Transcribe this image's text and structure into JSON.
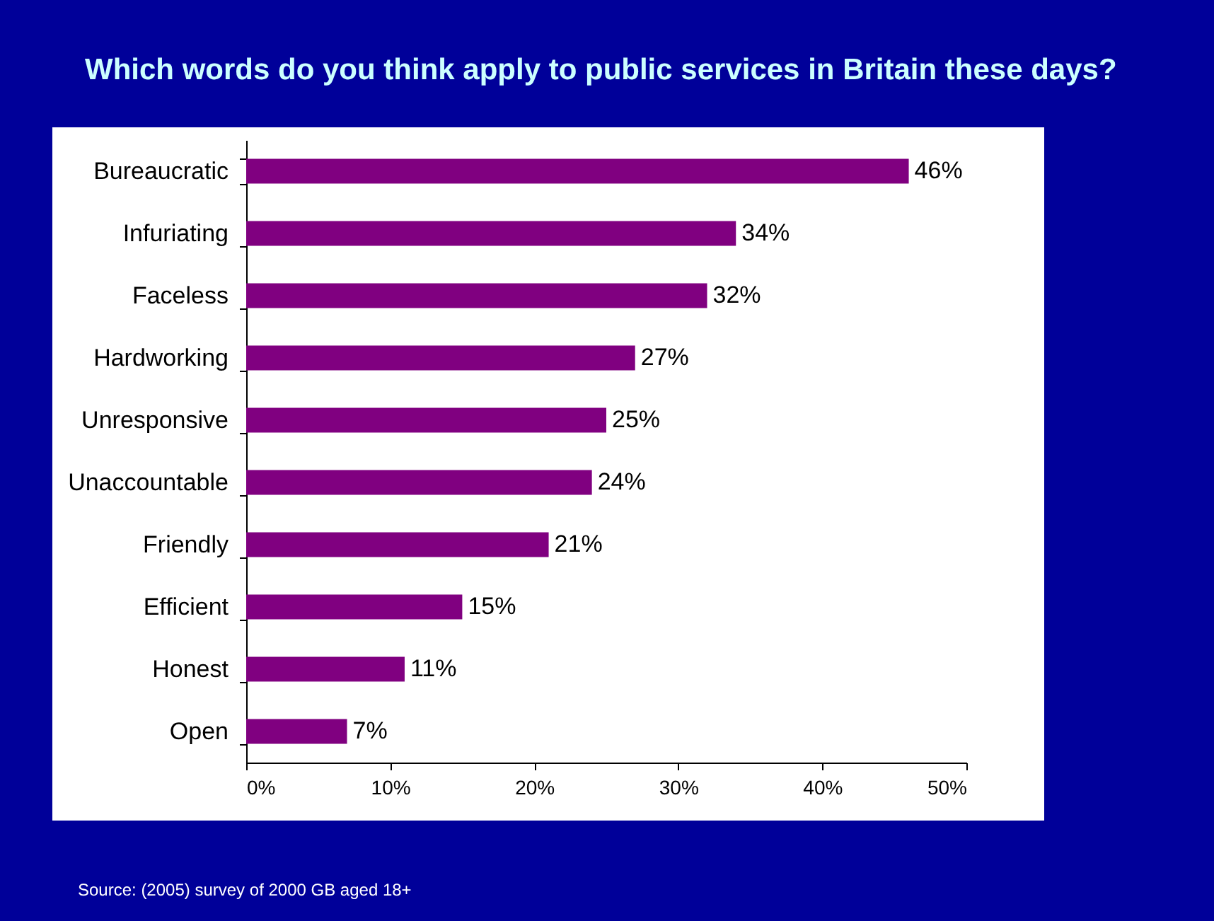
{
  "chart_data": {
    "type": "bar",
    "orientation": "horizontal",
    "title": "Which words do you think apply to public services in Britain these days?",
    "categories": [
      "Bureaucratic",
      "Infuriating",
      "Faceless",
      "Hardworking",
      "Unresponsive",
      "Unaccountable",
      "Friendly",
      "Efficient",
      "Honest",
      "Open"
    ],
    "values": [
      46,
      34,
      32,
      27,
      25,
      24,
      21,
      15,
      11,
      7
    ],
    "value_labels": [
      "46%",
      "34%",
      "32%",
      "27%",
      "25%",
      "24%",
      "21%",
      "15%",
      "11%",
      "7%"
    ],
    "color": "#800080",
    "xlim": [
      0,
      50
    ],
    "xticks": [
      {
        "value": 0,
        "label": "0%"
      },
      {
        "value": 10,
        "label": "10%"
      },
      {
        "value": 20,
        "label": "20%"
      },
      {
        "value": 30,
        "label": "30%"
      },
      {
        "value": 40,
        "label": "40%"
      },
      {
        "value": 50,
        "label": "50%"
      }
    ],
    "grid": false,
    "annotations": [
      "Source: (2005) survey of 2000 GB aged 18+"
    ]
  }
}
